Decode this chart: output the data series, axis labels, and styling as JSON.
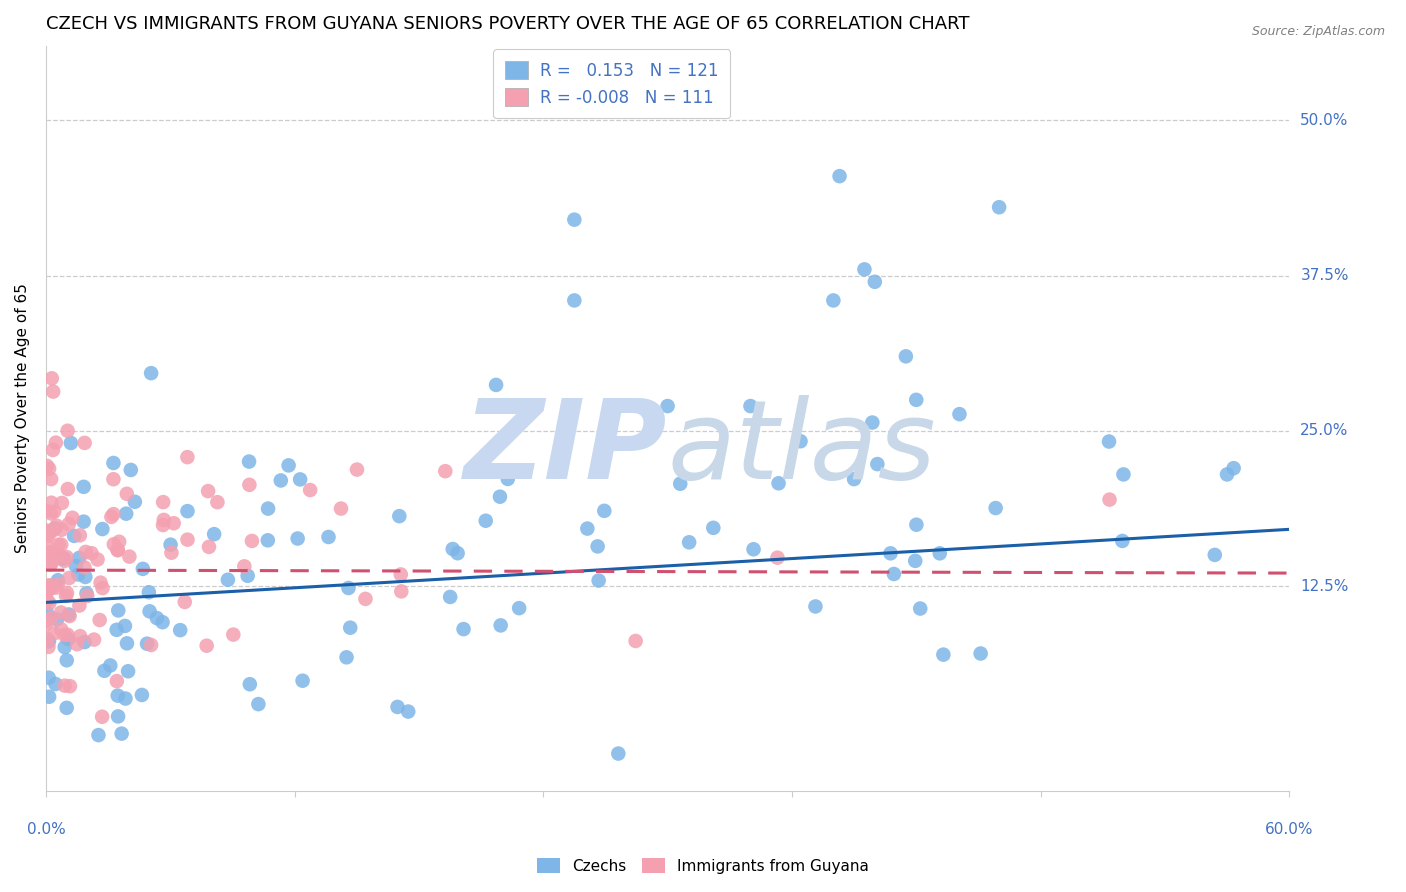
{
  "title": "CZECH VS IMMIGRANTS FROM GUYANA SENIORS POVERTY OVER THE AGE OF 65 CORRELATION CHART",
  "source": "Source: ZipAtlas.com",
  "ylabel": "Seniors Poverty Over the Age of 65",
  "ytick_labels": [
    "50.0%",
    "37.5%",
    "25.0%",
    "12.5%"
  ],
  "ytick_values": [
    0.5,
    0.375,
    0.25,
    0.125
  ],
  "xlim": [
    0.0,
    0.6
  ],
  "ylim": [
    -0.04,
    0.56
  ],
  "czech_color": "#7EB6E8",
  "guyana_color": "#F4A0B0",
  "czech_line_color": "#1A5FA8",
  "guyana_line_color": "#D05070",
  "background_color": "#FFFFFF",
  "grid_color": "#CCCCCC",
  "tick_label_color": "#4472C4",
  "watermark_zip_color": "#C8D8F0",
  "watermark_atlas_color": "#C8D8E8",
  "title_fontsize": 13,
  "axis_label_fontsize": 11,
  "tick_fontsize": 11,
  "legend_fontsize": 12,
  "source_fontsize": 9
}
